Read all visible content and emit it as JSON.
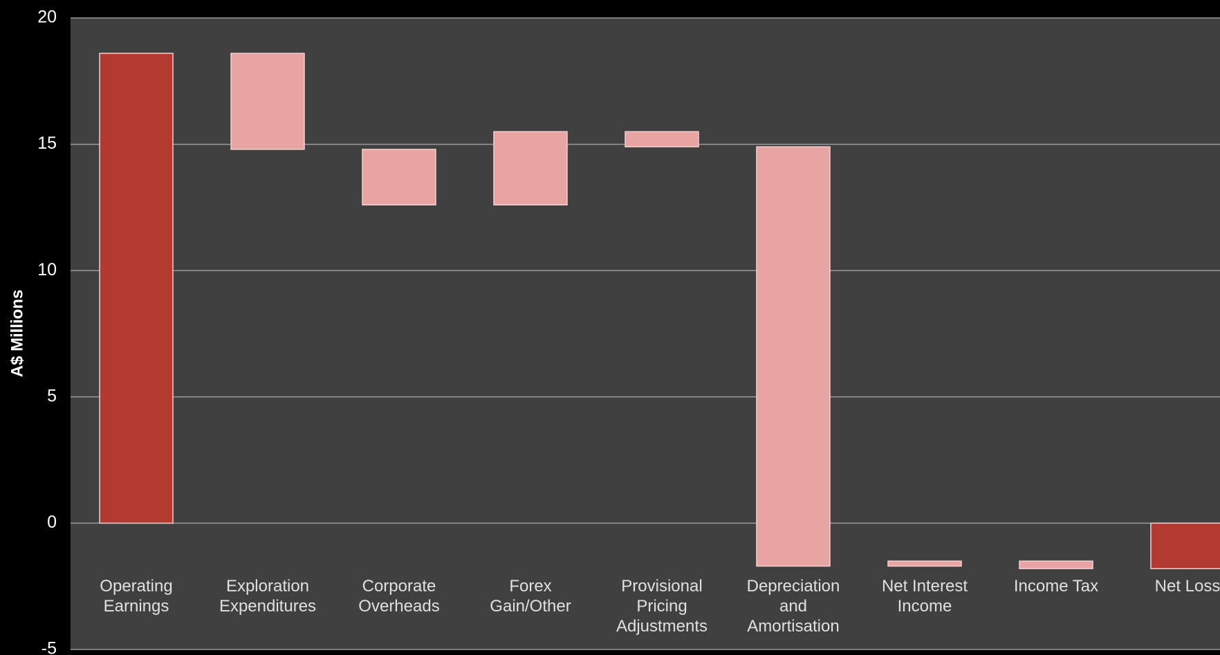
{
  "chart_data": {
    "type": "waterfall",
    "y_label": "A$ Millions",
    "categories": [
      "Operating\nEarnings",
      "Exploration\nExpenditures",
      "Corporate\nOverheads",
      "Forex\nGain/Other",
      "Provisional\nPricing\nAdjustments",
      "Depreciation\nand\nAmortisation",
      "Net Interest\nIncome",
      "Income Tax",
      "Net Loss"
    ],
    "values": [
      18.6,
      -3.8,
      -2.2,
      2.9,
      -0.6,
      -16.6,
      0.2,
      -0.3,
      -1.8
    ],
    "measure": [
      "absolute",
      "relative",
      "relative",
      "relative",
      "relative",
      "relative",
      "relative",
      "relative",
      "absolute"
    ],
    "total_color": "#b23a30",
    "change_color": "#e8a3a3",
    "ylim": [
      -5,
      20
    ],
    "yticks": [
      -5,
      0,
      5,
      10,
      15,
      20
    ],
    "grid": true
  }
}
